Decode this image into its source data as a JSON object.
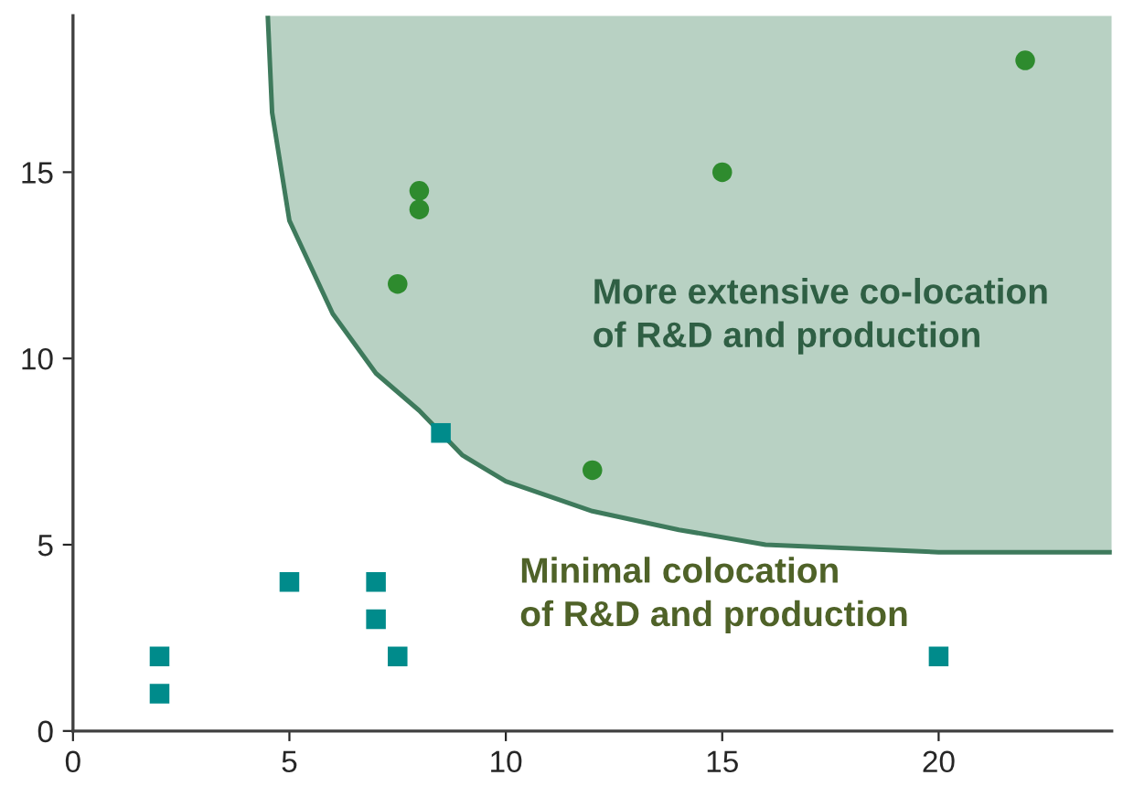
{
  "chart_data": {
    "type": "scatter",
    "series": [
      {
        "type": "line",
        "color": "#3e7a5c",
        "x": [
          4.5,
          4.6,
          5,
          6,
          7,
          8,
          9,
          10,
          12,
          14,
          16,
          18,
          20,
          22,
          24
        ],
        "values": [
          19.2,
          16.6,
          13.7,
          11.2,
          9.6,
          8.6,
          7.4,
          6.7,
          5.9,
          5.4,
          5,
          4.9,
          4.8,
          4.8,
          4.8
        ],
        "lower": [
          19.2,
          16.6,
          13.7,
          11.2,
          9.6,
          8.6,
          7.4,
          6.7,
          5.9,
          5.4,
          5,
          4.9,
          4.8,
          4.8,
          4.8
        ],
        "upper": [
          19.2,
          19.2,
          19.2,
          19.2,
          19.2,
          19.2,
          19.2,
          19.2,
          19.2,
          19.2,
          19.2,
          19.2,
          19.2,
          19.2,
          19.2
        ]
      },
      {
        "color": "#2e8b2e",
        "marker": "circle",
        "x": [
          22,
          15,
          8,
          8,
          7.5,
          12
        ],
        "values": [
          18,
          15,
          14.5,
          14,
          12,
          7
        ]
      },
      {
        "color": "#008b8b",
        "marker": "square",
        "x": [
          2,
          2,
          5,
          7,
          7,
          7.5,
          8.5,
          20
        ],
        "values": [
          2,
          1,
          4,
          4,
          3,
          2,
          8,
          2
        ]
      }
    ],
    "xlim": [
      0,
      24
    ],
    "ylim": [
      0,
      19.2
    ],
    "xticks": [
      0,
      5,
      10,
      15,
      20
    ],
    "yticks": [
      0,
      5,
      10,
      15
    ],
    "annotations": [
      "More extensive co-location\nof R&D and production",
      "Minimal colocation\nof R&D and production"
    ],
    "grid": false,
    "legend": false
  }
}
